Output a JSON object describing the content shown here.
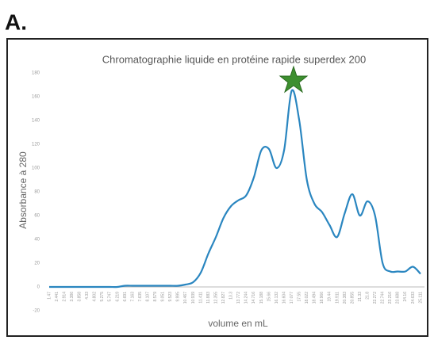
{
  "panel_label": "A.",
  "chart_data": {
    "type": "line",
    "title": "Chromatographie liquide en protéine rapide superdex 200",
    "x_label": "volume en mL",
    "y_label": "Absorbance à 280",
    "categories": [
      "1.47",
      "2.441",
      "2.914",
      "3.386",
      "3.858",
      "4.33",
      "4.802",
      "5.275",
      "5.747",
      "6.219",
      "6.691",
      "7.163",
      "7.635",
      "8.107",
      "8.579",
      "9.051",
      "9.523",
      "9.995",
      "10.467",
      "10.939",
      "11.411",
      "11.883",
      "12.355",
      "12.827",
      "13.3",
      "13.772",
      "14.244",
      "14.716",
      "15.188",
      "15.66",
      "16.132",
      "16.604",
      "17.077",
      "17.55",
      "18.022",
      "18.494",
      "18.966",
      "19.44",
      "19.911",
      "20.383",
      "20.855",
      "21.33",
      "21.8",
      "22.272",
      "22.744",
      "23.216",
      "23.688",
      "24.16",
      "24.633",
      "25.111"
    ],
    "series": [
      {
        "name": "Absorbance",
        "color": "#2a86c0",
        "values": [
          0,
          0,
          0,
          0,
          0,
          0,
          0,
          0,
          0,
          0,
          1,
          1,
          1,
          1,
          1,
          1,
          1,
          1,
          2,
          4,
          12,
          28,
          42,
          58,
          68,
          73,
          77,
          92,
          115,
          116,
          100,
          115,
          165,
          140,
          90,
          70,
          63,
          52,
          42,
          62,
          78,
          60,
          72,
          60,
          20,
          13,
          13,
          13,
          17,
          11
        ]
      }
    ],
    "ylim": [
      -20,
      180
    ],
    "yticks": [
      -20,
      0,
      20,
      40,
      60,
      80,
      100,
      120,
      140,
      160,
      180
    ],
    "grid": false
  }
}
